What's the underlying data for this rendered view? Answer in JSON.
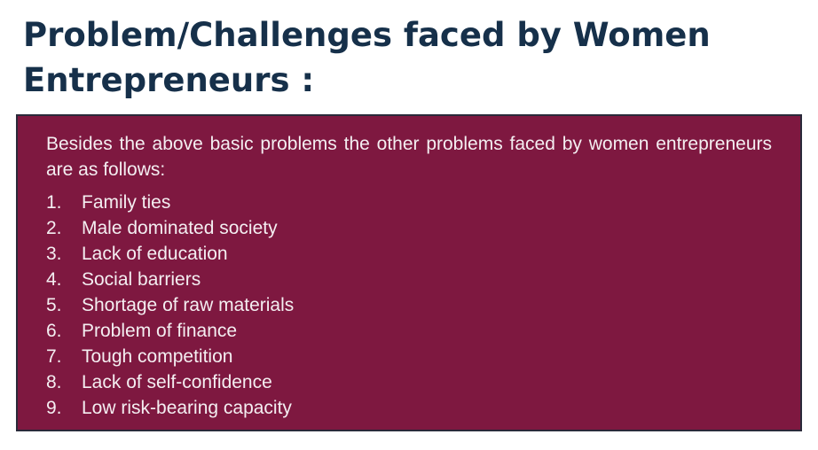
{
  "slide": {
    "title_line1": "Problem/Challenges faced by Women",
    "title_line2": "Entrepreneurs :",
    "intro": "Besides the above basic problems the other problems faced by women entrepreneurs are as follows:",
    "items": [
      {
        "num": "1.",
        "text": "Family ties"
      },
      {
        "num": "2.",
        "text": "Male dominated society"
      },
      {
        "num": "3.",
        "text": "Lack of education"
      },
      {
        "num": "4.",
        "text": "Social barriers"
      },
      {
        "num": "5.",
        "text": "Shortage of raw materials"
      },
      {
        "num": "6.",
        "text": "Problem of finance"
      },
      {
        "num": "7.",
        "text": "Tough competition"
      },
      {
        "num": "8.",
        "text": "Lack of self-confidence"
      },
      {
        "num": "9.",
        "text": "Low risk-bearing capacity"
      }
    ]
  },
  "colors": {
    "title": "#16304a",
    "panel_background": "#7e1840",
    "panel_text": "#f4eef1"
  }
}
